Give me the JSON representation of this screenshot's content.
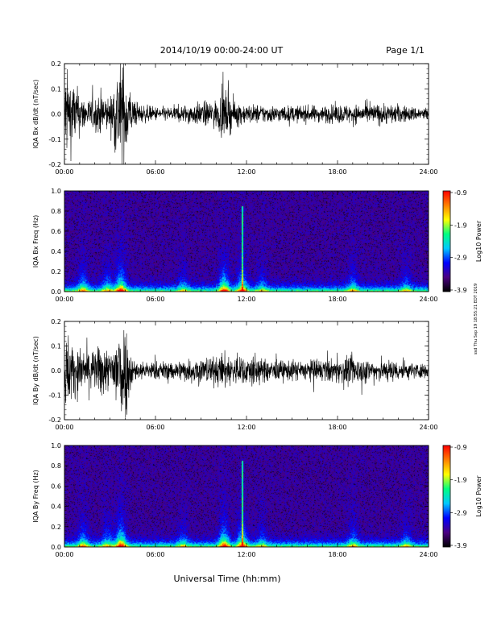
{
  "header": {
    "title": "2014/10/19   00:00-24:00 UT",
    "page": "Page 1/1"
  },
  "footer": {
    "xlabel": "Universal Time (hh:mm)"
  },
  "side_stamp": "ssd Thu Sep 19 18:55:21 EDT 2019",
  "time_ticks": [
    "00:00",
    "06:00",
    "12:00",
    "18:00",
    "24:00"
  ],
  "colorbar": {
    "label": "Log10 Power",
    "tick_labels": [
      "-0.9",
      "-1.9",
      "-2.9",
      "-3.9"
    ],
    "range": [
      -3.9,
      -0.9
    ],
    "colors": [
      "#000000",
      "#4b0082",
      "#0000ff",
      "#00c8ff",
      "#00ff80",
      "#ffff00",
      "#ff8000",
      "#ff0000"
    ]
  },
  "chart_data": [
    {
      "type": "line",
      "ylabel": "IQA Bx dB/dt (nT/sec)",
      "ylim": [
        -0.2,
        0.2
      ],
      "yticks": [
        "0.2",
        "0.1",
        "0.0",
        "-0.1",
        "-0.2"
      ],
      "xlim": [
        "00:00",
        "24:00"
      ],
      "series": [
        {
          "envelope_hours": [
            0,
            0.5,
            1,
            1.5,
            2,
            2.5,
            3,
            3.5,
            4,
            4.5,
            5,
            6,
            7,
            8,
            9,
            10,
            10.5,
            11,
            11.5,
            12,
            13,
            14,
            15,
            16,
            17,
            18,
            19,
            20,
            21,
            22,
            23,
            24
          ],
          "envelope_amplitude": [
            0.2,
            0.15,
            0.09,
            0.06,
            0.07,
            0.1,
            0.06,
            0.22,
            0.22,
            0.06,
            0.04,
            0.03,
            0.03,
            0.04,
            0.05,
            0.06,
            0.1,
            0.07,
            0.05,
            0.04,
            0.04,
            0.035,
            0.035,
            0.035,
            0.035,
            0.04,
            0.04,
            0.04,
            0.045,
            0.04,
            0.03,
            0.03
          ]
        }
      ]
    },
    {
      "type": "heatmap",
      "ylabel": "IQA Bx Freq (Hz)",
      "ylim": [
        0.0,
        1.0
      ],
      "yticks": [
        "1.0",
        "0.8",
        "0.6",
        "0.4",
        "0.2",
        "0.0"
      ],
      "xlim": [
        "00:00",
        "24:00"
      ],
      "event_hours": [
        1.2,
        2.8,
        3.7,
        7.8,
        10.5,
        11.7,
        13.0,
        19.0,
        22.5
      ],
      "strength": [
        0.6,
        0.5,
        1.0,
        0.4,
        0.9,
        0.8,
        0.4,
        0.5,
        0.4
      ]
    },
    {
      "type": "line",
      "ylabel": "IQA By dB/dt (nT/sec)",
      "ylim": [
        -0.2,
        0.2
      ],
      "yticks": [
        "0.2",
        "0.1",
        "0.0",
        "-0.1",
        "-0.2"
      ],
      "xlim": [
        "00:00",
        "24:00"
      ],
      "series": [
        {
          "envelope_hours": [
            0,
            0.5,
            1,
            1.5,
            2,
            2.5,
            3,
            3.5,
            4,
            4.5,
            5,
            6,
            7,
            8,
            9,
            10,
            10.5,
            11,
            11.5,
            12,
            12.5,
            13,
            14,
            15,
            16,
            17,
            18,
            19,
            20,
            21,
            22,
            23,
            24
          ],
          "envelope_amplitude": [
            0.2,
            0.12,
            0.09,
            0.11,
            0.08,
            0.13,
            0.07,
            0.22,
            0.22,
            0.05,
            0.04,
            0.04,
            0.04,
            0.05,
            0.06,
            0.06,
            0.08,
            0.07,
            0.06,
            0.06,
            0.08,
            0.05,
            0.045,
            0.045,
            0.045,
            0.05,
            0.05,
            0.065,
            0.05,
            0.05,
            0.045,
            0.035,
            0.03
          ]
        }
      ]
    },
    {
      "type": "heatmap",
      "ylabel": "IQA By Freq (Hz)",
      "ylim": [
        0.0,
        1.0
      ],
      "yticks": [
        "1.0",
        "0.8",
        "0.6",
        "0.4",
        "0.2",
        "0.0"
      ],
      "xlim": [
        "00:00",
        "24:00"
      ],
      "event_hours": [
        1.2,
        2.8,
        3.7,
        7.8,
        10.5,
        11.7,
        13.0,
        19.0,
        22.5
      ],
      "strength": [
        0.6,
        0.5,
        1.0,
        0.4,
        0.9,
        0.8,
        0.4,
        0.5,
        0.4
      ]
    }
  ]
}
